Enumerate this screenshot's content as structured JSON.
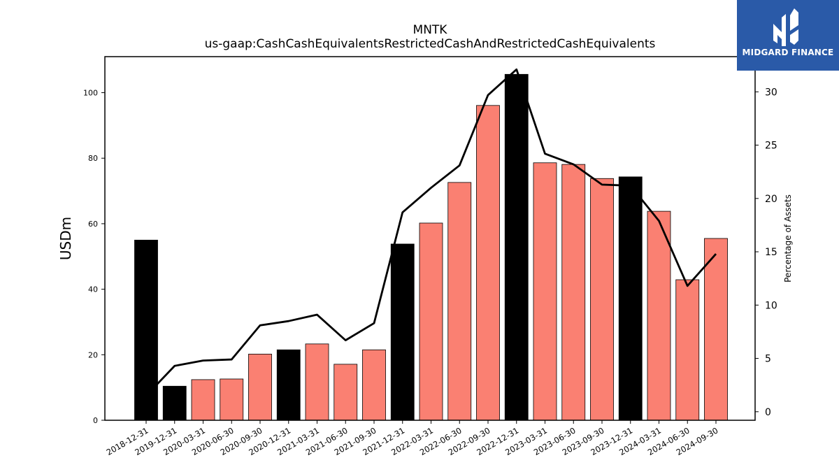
{
  "logo": {
    "text": "MIDGARD FINANCE",
    "background": "#2a5aa8"
  },
  "chart_data": {
    "type": "bar",
    "title": "MNTK",
    "subtitle": "us-gaap:CashCashEquivalentsRestrictedCashAndRestrictedCashEquivalents",
    "ylabel": "USDm",
    "y2label": "Percentage of Assets",
    "categories": [
      "2018-12-31",
      "2019-12-31",
      "2020-03-31",
      "2020-06-30",
      "2020-09-30",
      "2020-12-31",
      "2021-03-31",
      "2021-06-30",
      "2021-09-30",
      "2021-12-31",
      "2022-03-31",
      "2022-06-30",
      "2022-09-30",
      "2022-12-31",
      "2023-03-31",
      "2023-06-30",
      "2023-09-30",
      "2023-12-31",
      "2024-03-31",
      "2024-06-30",
      "2024-09-30"
    ],
    "series": [
      {
        "values": [
          55.0,
          10.4,
          12.4,
          12.6,
          20.2,
          21.5,
          23.3,
          17.1,
          21.5,
          53.8,
          60.2,
          72.6,
          96.1,
          105.6,
          78.6,
          78.1,
          73.8,
          74.3,
          63.8,
          42.9,
          55.5
        ],
        "axis": "left"
      },
      {
        "values": [
          1.5,
          4.3,
          4.8,
          4.9,
          8.1,
          8.5,
          9.1,
          6.7,
          8.3,
          18.7,
          21.0,
          23.1,
          29.7,
          32.1,
          24.2,
          23.2,
          21.3,
          21.2,
          17.9,
          11.8,
          14.8
        ],
        "axis": "right",
        "style": "line"
      }
    ],
    "annual_categories": [
      "2018-12-31",
      "2019-12-31",
      "2020-12-31",
      "2021-12-31",
      "2022-12-31",
      "2023-12-31"
    ],
    "colors": {
      "annual": "#000000",
      "quarterly": "#fa8072",
      "line": "#000000"
    },
    "ylim": [
      0,
      111
    ],
    "y2lim": [
      -0.8,
      33.3
    ],
    "yticks": [
      0,
      20,
      40,
      60,
      80,
      100
    ],
    "y2ticks": [
      0,
      5,
      10,
      15,
      20,
      25,
      30
    ],
    "grid": false,
    "legend": "none"
  }
}
